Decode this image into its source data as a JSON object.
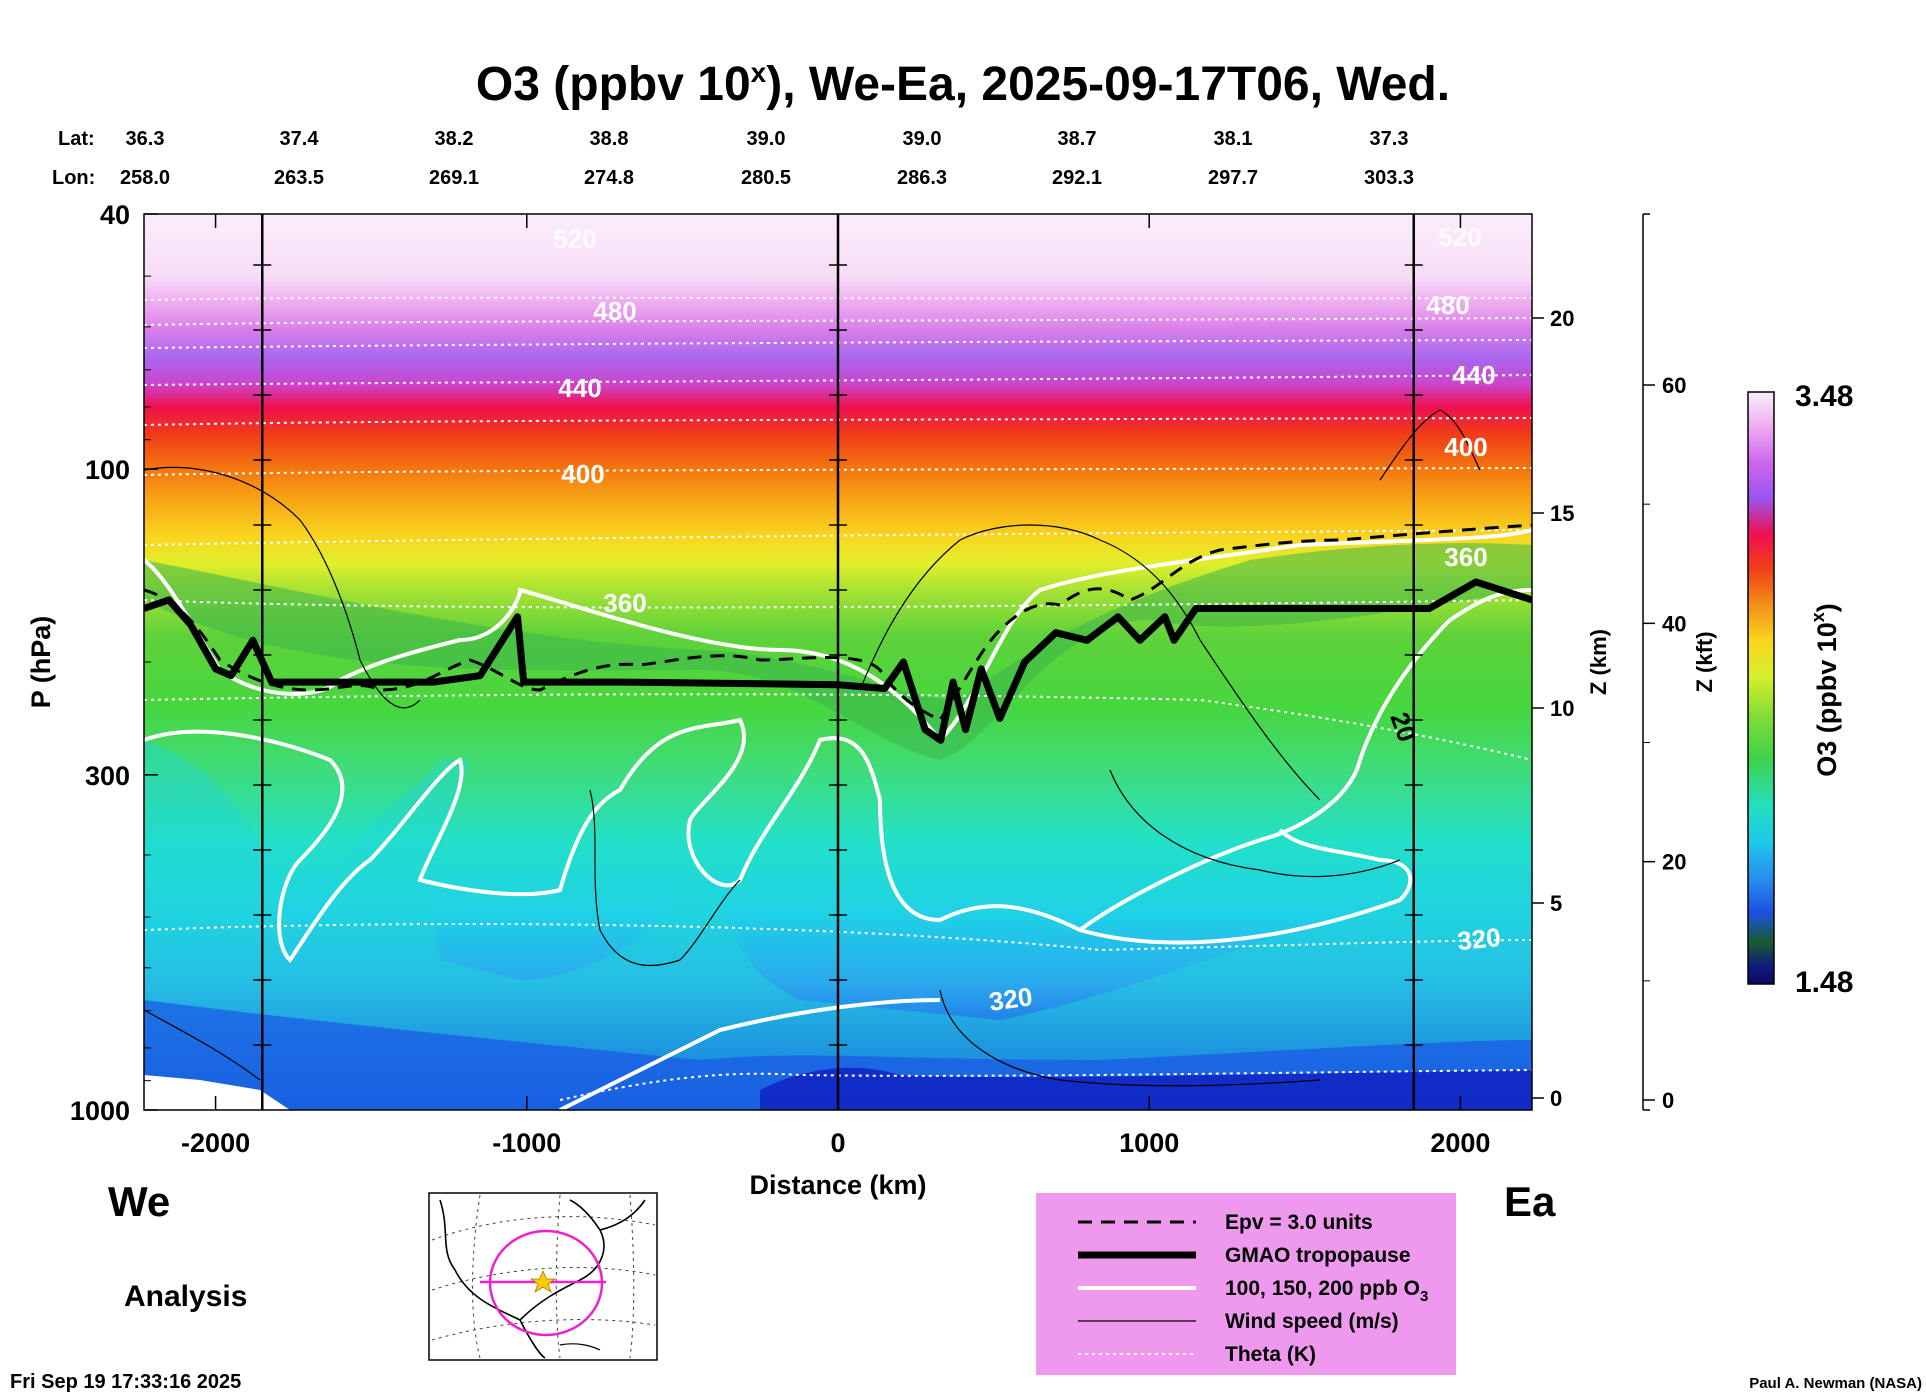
{
  "title": "O3 (ppbv 10",
  "title_sup": "x",
  "title_rest": "), We-Ea, 2025-09-17T06, Wed.",
  "header": {
    "lat_label": "Lat:",
    "lon_label": "Lon:",
    "lat": [
      "36.3",
      "37.4",
      "38.2",
      "38.8",
      "39.0",
      "39.0",
      "38.7",
      "38.1",
      "37.3"
    ],
    "lon": [
      "258.0",
      "263.5",
      "269.1",
      "274.8",
      "280.5",
      "286.3",
      "292.1",
      "297.7",
      "303.3"
    ]
  },
  "chart_data": {
    "type": "heatmap",
    "xlabel": "Distance (km)",
    "ylabel": "P (hPa)",
    "xlim": [
      -2230,
      2230
    ],
    "ylim": [
      1000,
      40
    ],
    "yscale": "log",
    "x_ticks": [
      "-2000",
      "-1000",
      "0",
      "1000",
      "2000"
    ],
    "y_ticks": [
      "40",
      "100",
      "300",
      "1000"
    ],
    "z_km_ticks": [
      "0",
      "5",
      "10",
      "15",
      "20"
    ],
    "z_km_label": "Z (km)",
    "z_kft_ticks": [
      "0",
      "20",
      "40",
      "60"
    ],
    "z_kft_label": "Z (kft)",
    "colorbar": {
      "label": "O3 (ppbv 10",
      "label_sup": "x",
      "label_end": ")",
      "max": "3.48",
      "min": "1.48"
    },
    "theta_labels": [
      "320",
      "360",
      "400",
      "440",
      "480",
      "520"
    ],
    "wind_label": "20",
    "tropopause_hPa": [
      [
        -2230,
        165
      ],
      [
        -2150,
        160
      ],
      [
        -2080,
        175
      ],
      [
        -2000,
        205
      ],
      [
        -1950,
        210
      ],
      [
        -1880,
        185
      ],
      [
        -1820,
        215
      ],
      [
        -1750,
        215
      ],
      [
        -1300,
        215
      ],
      [
        -1150,
        210
      ],
      [
        -1030,
        170
      ],
      [
        -1010,
        215
      ],
      [
        -700,
        215
      ],
      [
        0,
        217
      ],
      [
        150,
        220
      ],
      [
        210,
        200
      ],
      [
        280,
        255
      ],
      [
        330,
        265
      ],
      [
        370,
        215
      ],
      [
        410,
        255
      ],
      [
        460,
        205
      ],
      [
        520,
        245
      ],
      [
        600,
        200
      ],
      [
        700,
        180
      ],
      [
        800,
        185
      ],
      [
        900,
        170
      ],
      [
        970,
        185
      ],
      [
        1050,
        170
      ],
      [
        1080,
        185
      ],
      [
        1150,
        165
      ],
      [
        1400,
        165
      ],
      [
        1900,
        165
      ],
      [
        2050,
        150
      ],
      [
        2230,
        160
      ]
    ],
    "vertical_lines_km": [
      -1850,
      0,
      1850
    ],
    "legend": [
      {
        "style": "dashed",
        "label": "Epv = 3.0 units"
      },
      {
        "style": "thick",
        "label": "GMAO tropopause"
      },
      {
        "style": "white",
        "label": "100, 150, 200 ppb O"
      },
      {
        "style": "thin",
        "label": "Wind speed (m/s)"
      },
      {
        "style": "dotted",
        "label": "Theta (K)"
      }
    ],
    "legend_sub": "3"
  },
  "left_label": "We",
  "right_label": "Ea",
  "analysis_label": "Analysis",
  "timestamp": "Fri Sep 19 17:33:16 2025",
  "credit": "Paul A. Newman (NASA)"
}
